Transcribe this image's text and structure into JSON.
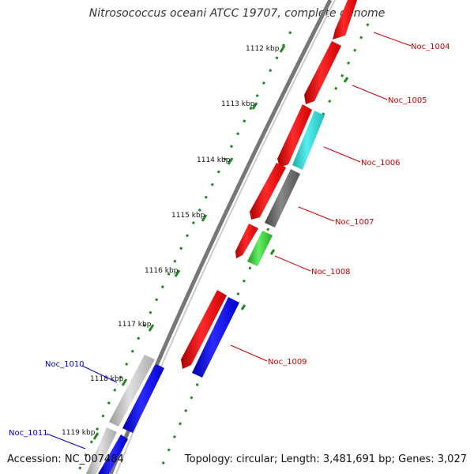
{
  "title": "Nitrosococcus oceani ATCC 19707, complete genome",
  "accession": "Accession: NC_007484",
  "topology": "Topology: circular; Length: 3,481,691 bp; Genes: 3,027",
  "colors": {
    "forward": "#ff0000",
    "reverse_blue": "#0000ff",
    "cyan": "#33cccc",
    "dark_gray": "#666666",
    "light_gray": "#bbbbbb",
    "green": "#33cc33",
    "backbone": "#777777",
    "tick": "#228822",
    "label_red": "#cc0000",
    "label_blue": "#0000cc"
  },
  "ticks": [
    {
      "label": "1112 kbp"
    },
    {
      "label": "1113 kbp"
    },
    {
      "label": "1114 kbp"
    },
    {
      "label": "1115 kbp"
    },
    {
      "label": "1116 kbp"
    },
    {
      "label": "1117 kbp"
    },
    {
      "label": "1118 kbp"
    },
    {
      "label": "1119 kbp"
    }
  ],
  "gene_labels": [
    {
      "text": "Noc_1004",
      "color": "label_red"
    },
    {
      "text": "Noc_1005",
      "color": "label_red"
    },
    {
      "text": "Noc_1006",
      "color": "label_red"
    },
    {
      "text": "Noc_1007",
      "color": "label_red"
    },
    {
      "text": "Noc_1008",
      "color": "label_red"
    },
    {
      "text": "Noc_1009",
      "color": "label_red"
    },
    {
      "text": "Noc_1010",
      "color": "label_blue"
    },
    {
      "text": "Noc_1011",
      "color": "label_blue"
    }
  ]
}
